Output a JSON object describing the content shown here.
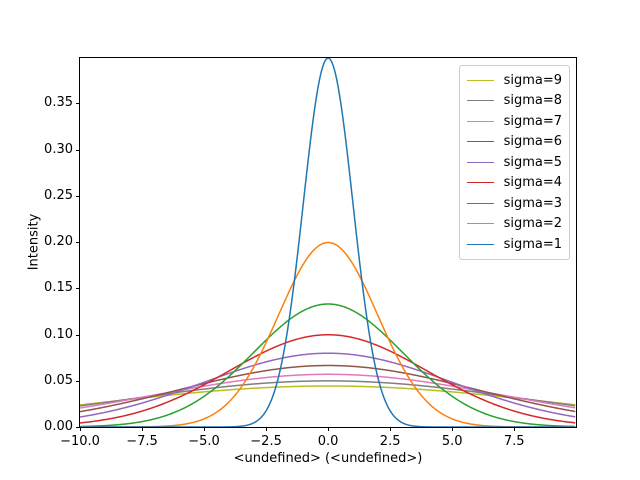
{
  "chart_data": {
    "type": "line",
    "title": "",
    "xlabel": "<undefined> (<undefined>)",
    "ylabel": "Intensity",
    "xlim": [
      -10,
      9.99
    ],
    "ylim": [
      0,
      0.399
    ],
    "grid": false,
    "legend_position": "upper right",
    "curve_formula": "y = exp(-x^2 / (2*sigma^2)) / (sigma*sqrt(2*pi))",
    "x_ticks": [
      -10.0,
      -7.5,
      -5.0,
      -2.5,
      0.0,
      2.5,
      5.0,
      7.5
    ],
    "x_tick_labels": [
      "−10.0",
      "−7.5",
      "−5.0",
      "−2.5",
      "0.0",
      "2.5",
      "5.0",
      "7.5"
    ],
    "y_ticks": [
      0.0,
      0.05,
      0.1,
      0.15,
      0.2,
      0.25,
      0.3,
      0.35
    ],
    "y_tick_labels": [
      "0.00",
      "0.05",
      "0.10",
      "0.15",
      "0.20",
      "0.25",
      "0.30",
      "0.35"
    ],
    "series": [
      {
        "name": "sigma=9",
        "sigma": 9,
        "peak": 0.0443,
        "color": "#bcbd22"
      },
      {
        "name": "sigma=8",
        "sigma": 8,
        "peak": 0.0499,
        "color": "#7f7f7f"
      },
      {
        "name": "sigma=7",
        "sigma": 7,
        "peak": 0.057,
        "color": "#e377c2"
      },
      {
        "name": "sigma=6",
        "sigma": 6,
        "peak": 0.0665,
        "color": "#8c564b"
      },
      {
        "name": "sigma=5",
        "sigma": 5,
        "peak": 0.0798,
        "color": "#9467bd"
      },
      {
        "name": "sigma=4",
        "sigma": 4,
        "peak": 0.0997,
        "color": "#d62728"
      },
      {
        "name": "sigma=3",
        "sigma": 3,
        "peak": 0.133,
        "color": "#2ca02c"
      },
      {
        "name": "sigma=2",
        "sigma": 2,
        "peak": 0.1995,
        "color": "#ff7f0e"
      },
      {
        "name": "sigma=1",
        "sigma": 1,
        "peak": 0.3989,
        "color": "#1f77b4"
      }
    ]
  }
}
